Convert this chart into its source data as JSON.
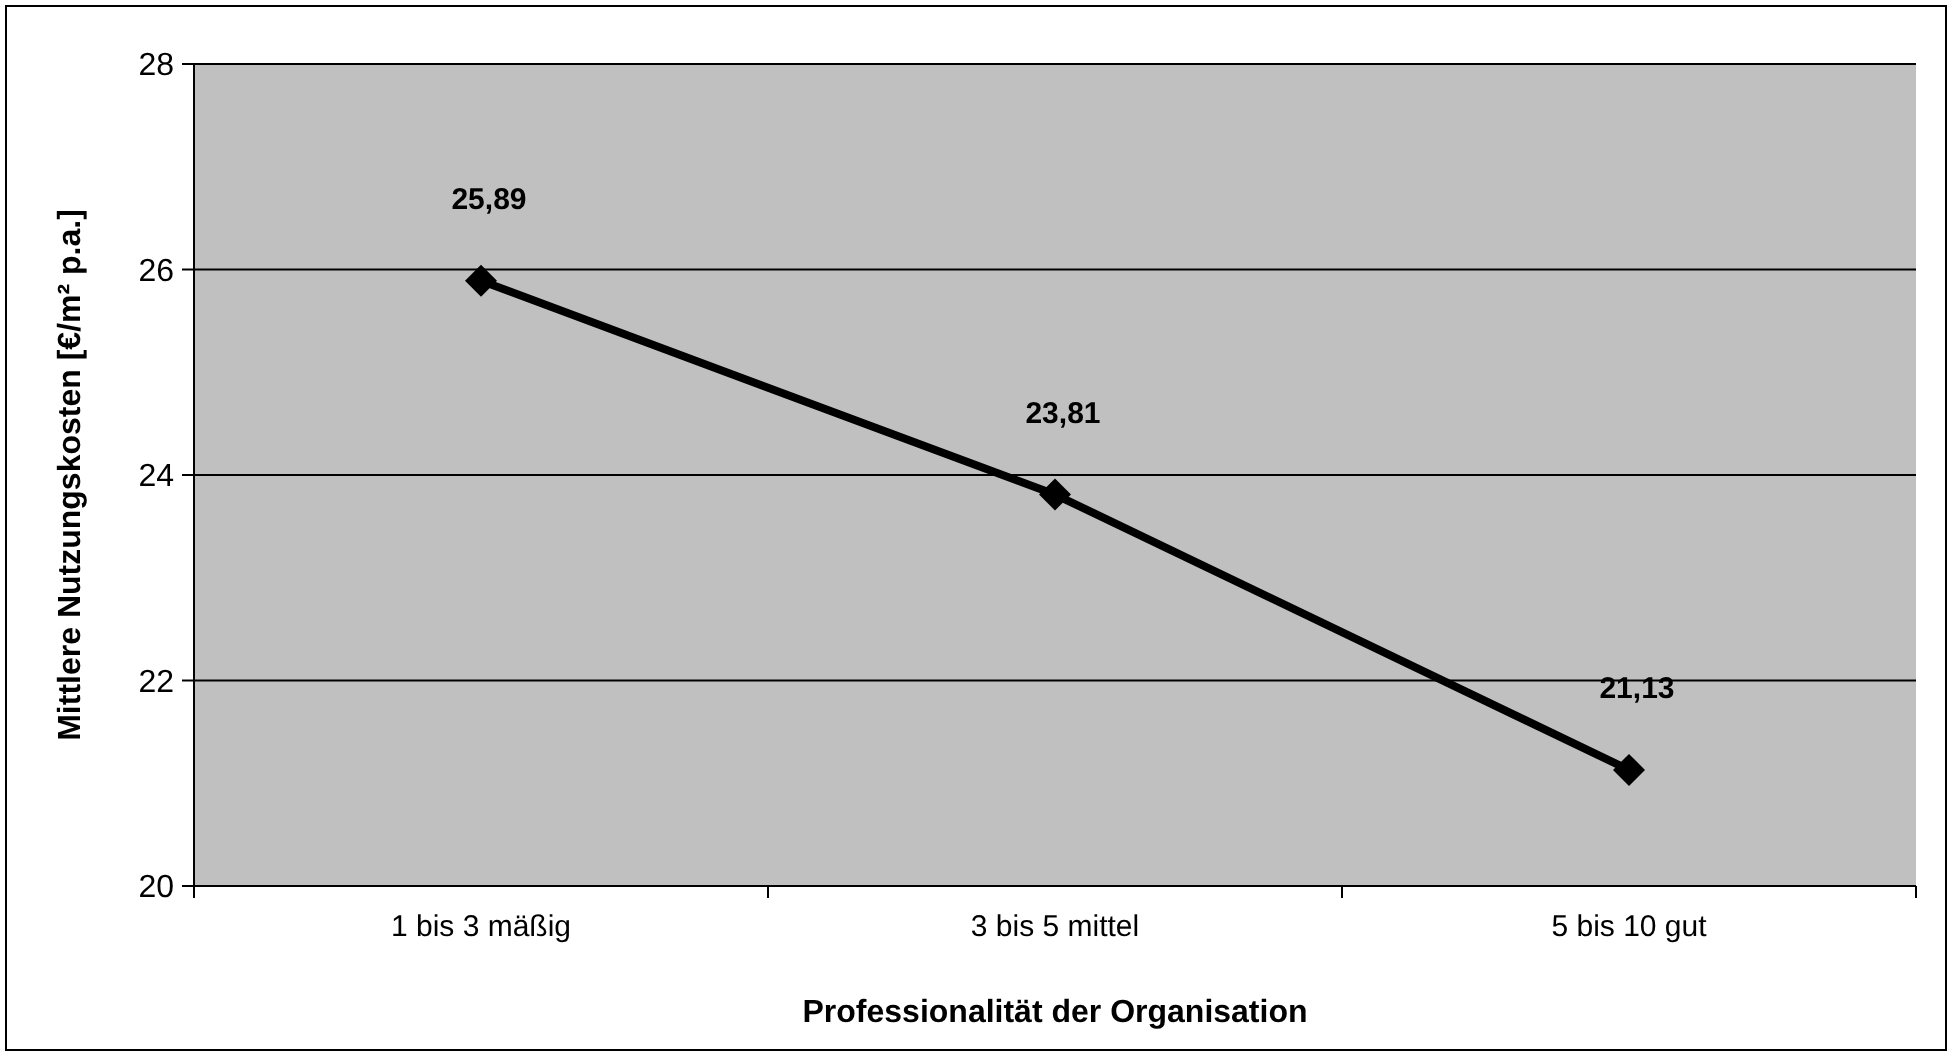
{
  "chart_data": {
    "type": "line",
    "xlabel": "Professionalität der Organisation",
    "ylabel": "Mittlere Nutzungskosten [€/m² p.a.]",
    "categories": [
      "1 bis 3 mäßig",
      "3 bis 5 mittel",
      "5 bis 10 gut"
    ],
    "series": [
      {
        "color": "#000000",
        "values": [
          25.89,
          23.81,
          21.13
        ],
        "value_labels": [
          "25,89",
          "23,81",
          "21,13"
        ]
      }
    ],
    "ylim": [
      20,
      28
    ],
    "yticks": [
      20,
      22,
      24,
      26,
      28
    ],
    "grid": "y",
    "marker": "diamond",
    "line_style": "solid"
  }
}
